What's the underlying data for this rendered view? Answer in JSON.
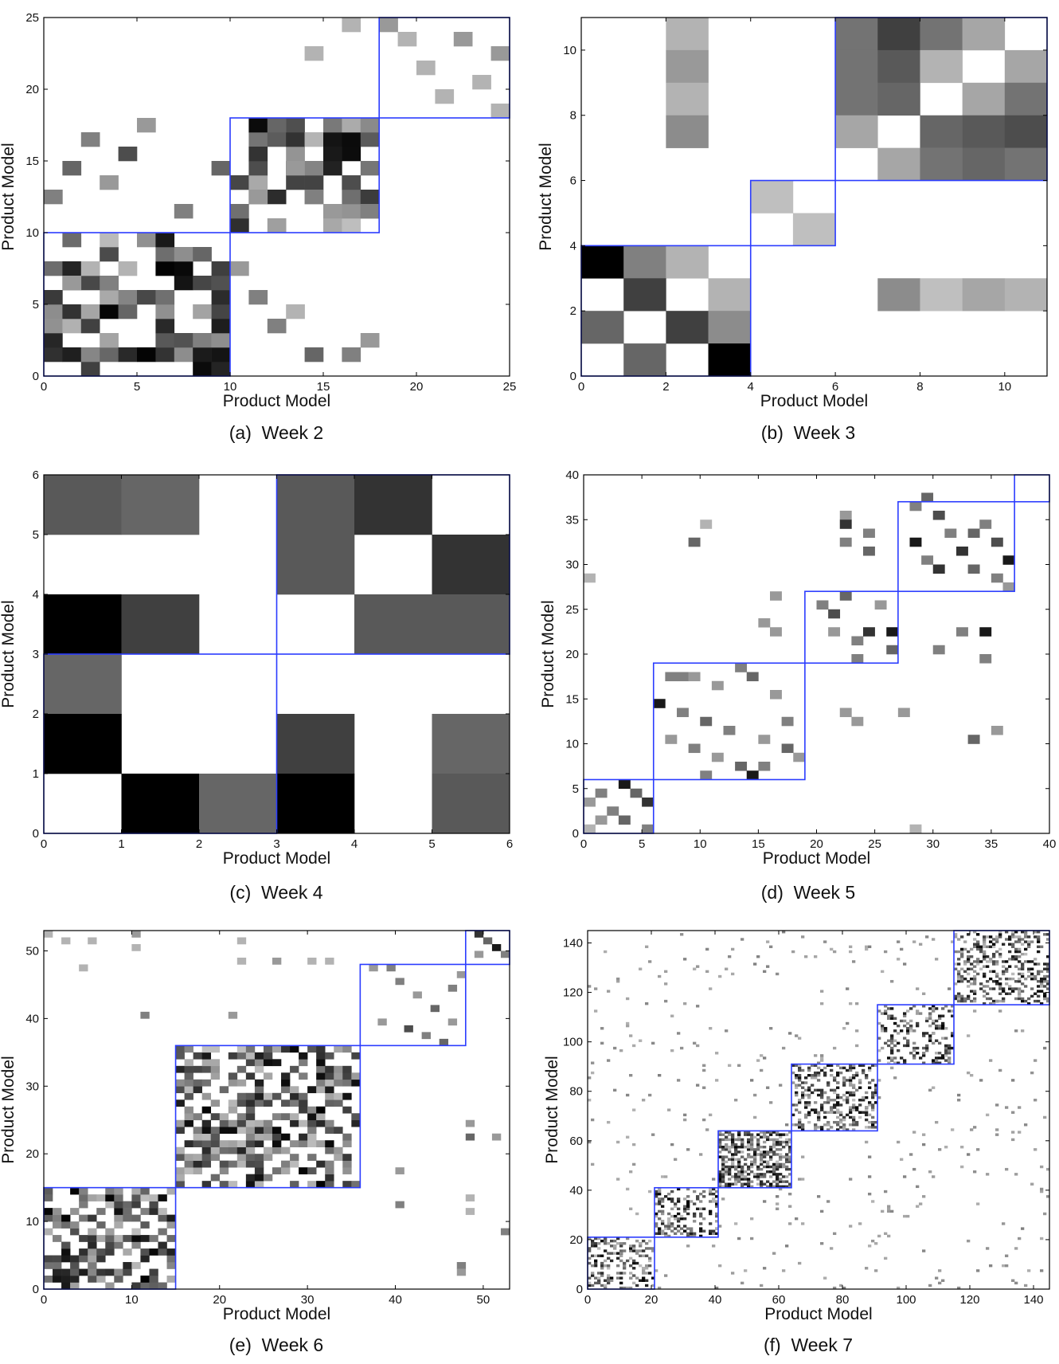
{
  "chart_data": [
    {
      "type": "heatmap",
      "caption": "(a)  Week 2",
      "xlabel": "Product Model",
      "ylabel": "Product Model",
      "xlim": [
        0,
        25
      ],
      "ylim": [
        0,
        25
      ],
      "xticks": [
        0,
        5,
        10,
        15,
        20,
        25
      ],
      "yticks": [
        0,
        5,
        10,
        15,
        20,
        25
      ],
      "block_boundaries": [
        0,
        10,
        18,
        25
      ],
      "cells": [
        [
          1,
          6,
          0.4
        ],
        [
          3,
          6,
          0.5
        ],
        [
          6,
          9,
          0.9
        ],
        [
          8,
          8,
          0.6
        ],
        [
          10,
          7,
          0.4
        ],
        [
          11,
          5,
          0.5
        ],
        [
          12,
          3,
          0.5
        ],
        [
          13,
          4,
          0.3
        ],
        [
          14,
          1,
          0.6
        ],
        [
          16,
          1,
          0.5
        ],
        [
          17,
          2,
          0.4
        ],
        [
          0,
          12,
          0.5
        ],
        [
          1,
          14,
          0.6
        ],
        [
          2,
          16,
          0.5
        ],
        [
          3,
          13,
          0.4
        ],
        [
          4,
          15,
          0.7
        ],
        [
          5,
          17,
          0.4
        ],
        [
          7,
          11,
          0.5
        ],
        [
          9,
          14,
          0.6
        ],
        [
          11,
          15,
          0.8
        ],
        [
          12,
          17,
          0.6
        ],
        [
          13,
          14,
          0.4
        ],
        [
          14,
          12,
          0.5
        ],
        [
          15,
          15,
          0.9
        ],
        [
          16,
          13,
          0.7
        ],
        [
          17,
          11,
          0.5
        ],
        [
          15,
          11,
          0.4
        ],
        [
          11,
          12,
          0.4
        ],
        [
          19,
          23,
          0.3
        ],
        [
          20,
          21,
          0.3
        ],
        [
          21,
          19,
          0.3
        ],
        [
          22,
          23,
          0.4
        ],
        [
          23,
          20,
          0.3
        ],
        [
          24,
          18,
          0.3
        ],
        [
          24,
          22,
          0.4
        ],
        [
          18,
          24,
          0.4
        ],
        [
          16,
          24,
          0.3
        ],
        [
          14,
          22,
          0.3
        ]
      ],
      "dense_blocks": [
        [
          0,
          10,
          0.55
        ],
        [
          10,
          18,
          0.7
        ]
      ]
    },
    {
      "type": "heatmap",
      "caption": "(b)  Week 3",
      "xlabel": "Product Model",
      "ylabel": "Product Model",
      "xlim": [
        0,
        11
      ],
      "ylim": [
        0,
        11
      ],
      "xticks": [
        0,
        2,
        4,
        6,
        8,
        10
      ],
      "yticks": [
        0,
        2,
        4,
        6,
        8,
        10
      ],
      "block_boundaries": [
        0,
        4,
        6,
        11
      ],
      "cells": [
        [
          0,
          3,
          1.0
        ],
        [
          1,
          3,
          0.5
        ],
        [
          2,
          3,
          0.3
        ],
        [
          1,
          2,
          0.75
        ],
        [
          3,
          2,
          0.3
        ],
        [
          0,
          1,
          0.6
        ],
        [
          2,
          1,
          0.75
        ],
        [
          3,
          1,
          0.45
        ],
        [
          1,
          0,
          0.6
        ],
        [
          3,
          0,
          1.0
        ],
        [
          4,
          5,
          0.25
        ],
        [
          5,
          4,
          0.25
        ],
        [
          6,
          10,
          0.55
        ],
        [
          7,
          10,
          0.75
        ],
        [
          8,
          10,
          0.55
        ],
        [
          9,
          10,
          0.35
        ],
        [
          6,
          9,
          0.55
        ],
        [
          7,
          9,
          0.65
        ],
        [
          8,
          9,
          0.3
        ],
        [
          10,
          9,
          0.35
        ],
        [
          6,
          8,
          0.55
        ],
        [
          7,
          8,
          0.6
        ],
        [
          9,
          8,
          0.35
        ],
        [
          10,
          8,
          0.55
        ],
        [
          6,
          7,
          0.35
        ],
        [
          8,
          7,
          0.6
        ],
        [
          9,
          7,
          0.65
        ],
        [
          10,
          7,
          0.7
        ],
        [
          7,
          6,
          0.35
        ],
        [
          8,
          6,
          0.55
        ],
        [
          9,
          6,
          0.6
        ],
        [
          10,
          6,
          0.55
        ],
        [
          2,
          10,
          0.3
        ],
        [
          2,
          9,
          0.4
        ],
        [
          2,
          8,
          0.3
        ],
        [
          2,
          7,
          0.45
        ],
        [
          7,
          2,
          0.45
        ],
        [
          8,
          2,
          0.25
        ],
        [
          9,
          2,
          0.35
        ],
        [
          10,
          2,
          0.3
        ]
      ]
    },
    {
      "type": "heatmap",
      "caption": "(c)  Week 4",
      "xlabel": "Product Model",
      "ylabel": "Product Model",
      "xlim": [
        0,
        6
      ],
      "ylim": [
        0,
        6
      ],
      "xticks": [
        0,
        1,
        2,
        3,
        4,
        5,
        6
      ],
      "yticks": [
        0,
        1,
        2,
        3,
        4,
        5,
        6
      ],
      "block_boundaries": [
        0,
        3,
        6
      ],
      "cells": [
        [
          0,
          5,
          0.65
        ],
        [
          1,
          5,
          0.6
        ],
        [
          3,
          5,
          0.65
        ],
        [
          4,
          5,
          0.8
        ],
        [
          3,
          4,
          0.65
        ],
        [
          5,
          4,
          0.8
        ],
        [
          0,
          3,
          1.0
        ],
        [
          1,
          3,
          0.75
        ],
        [
          4,
          3,
          0.65
        ],
        [
          5,
          3,
          0.65
        ],
        [
          0,
          2,
          0.6
        ],
        [
          0,
          1,
          1.0
        ],
        [
          3,
          1,
          0.75
        ],
        [
          5,
          1,
          0.6
        ],
        [
          1,
          0,
          1.0
        ],
        [
          2,
          0,
          0.6
        ],
        [
          3,
          0,
          1.0
        ],
        [
          5,
          0,
          0.65
        ]
      ]
    },
    {
      "type": "heatmap",
      "caption": "(d)  Week 5",
      "xlabel": "Product Model",
      "ylabel": "Product Model",
      "xlim": [
        0,
        40
      ],
      "ylim": [
        0,
        40
      ],
      "xticks": [
        0,
        5,
        10,
        15,
        20,
        25,
        30,
        35,
        40
      ],
      "yticks": [
        0,
        5,
        10,
        15,
        20,
        25,
        30,
        35,
        40
      ],
      "block_boundaries": [
        0,
        6,
        19,
        27,
        37,
        40
      ],
      "cells": [
        [
          3,
          5,
          0.9
        ],
        [
          1,
          4,
          0.5
        ],
        [
          4,
          4,
          0.6
        ],
        [
          5,
          3,
          0.8
        ],
        [
          0,
          3,
          0.4
        ],
        [
          2,
          2,
          0.5
        ],
        [
          3,
          1,
          0.6
        ],
        [
          1,
          1,
          0.4
        ],
        [
          5,
          0,
          0.5
        ],
        [
          0,
          0,
          0.3
        ],
        [
          7,
          17,
          0.5
        ],
        [
          8,
          17,
          0.5
        ],
        [
          9,
          17,
          0.4
        ],
        [
          11,
          16,
          0.4
        ],
        [
          13,
          18,
          0.5
        ],
        [
          14,
          17,
          0.6
        ],
        [
          16,
          15,
          0.4
        ],
        [
          6,
          14,
          0.9
        ],
        [
          8,
          13,
          0.5
        ],
        [
          10,
          12,
          0.6
        ],
        [
          12,
          11,
          0.5
        ],
        [
          7,
          10,
          0.4
        ],
        [
          9,
          9,
          0.5
        ],
        [
          11,
          8,
          0.4
        ],
        [
          13,
          7,
          0.6
        ],
        [
          15,
          7,
          0.5
        ],
        [
          17,
          9,
          0.6
        ],
        [
          18,
          8,
          0.4
        ],
        [
          17,
          12,
          0.5
        ],
        [
          15,
          10,
          0.4
        ],
        [
          10,
          6,
          0.5
        ],
        [
          14,
          6,
          0.9
        ],
        [
          20,
          25,
          0.5
        ],
        [
          21,
          24,
          0.7
        ],
        [
          22,
          26,
          0.6
        ],
        [
          23,
          21,
          0.5
        ],
        [
          24,
          22,
          0.8
        ],
        [
          25,
          25,
          0.4
        ],
        [
          26,
          22,
          0.9
        ],
        [
          26,
          20,
          0.6
        ],
        [
          21,
          22,
          0.4
        ],
        [
          23,
          19,
          0.5
        ],
        [
          28,
          36,
          0.5
        ],
        [
          29,
          37,
          0.6
        ],
        [
          30,
          35,
          0.7
        ],
        [
          31,
          33,
          0.5
        ],
        [
          32,
          31,
          0.8
        ],
        [
          33,
          29,
          0.6
        ],
        [
          34,
          34,
          0.5
        ],
        [
          35,
          32,
          0.7
        ],
        [
          36,
          30,
          0.9
        ],
        [
          28,
          32,
          0.9
        ],
        [
          30,
          29,
          0.8
        ],
        [
          33,
          33,
          0.6
        ],
        [
          35,
          28,
          0.5
        ],
        [
          36,
          27,
          0.4
        ],
        [
          29,
          30,
          0.5
        ],
        [
          22,
          35,
          0.4
        ],
        [
          22,
          34,
          0.8
        ],
        [
          24,
          33,
          0.5
        ],
        [
          22,
          32,
          0.5
        ],
        [
          24,
          31,
          0.6
        ],
        [
          0,
          28,
          0.3
        ],
        [
          16,
          26,
          0.4
        ],
        [
          10,
          34,
          0.3
        ],
        [
          9,
          32,
          0.6
        ],
        [
          15,
          23,
          0.4
        ],
        [
          16,
          22,
          0.4
        ],
        [
          32,
          22,
          0.5
        ],
        [
          34,
          22,
          0.9
        ],
        [
          30,
          20,
          0.5
        ],
        [
          34,
          19,
          0.5
        ],
        [
          22,
          13,
          0.4
        ],
        [
          23,
          12,
          0.4
        ],
        [
          27,
          13,
          0.4
        ],
        [
          35,
          11,
          0.4
        ],
        [
          33,
          10,
          0.6
        ],
        [
          28,
          0,
          0.3
        ]
      ]
    },
    {
      "type": "heatmap",
      "caption": "(e)  Week 6",
      "xlabel": "Product Model",
      "ylabel": "Product Model",
      "xlim": [
        0,
        53
      ],
      "ylim": [
        0,
        53
      ],
      "xticks": [
        0,
        10,
        20,
        30,
        40,
        50
      ],
      "yticks": [
        0,
        10,
        20,
        30,
        40,
        50
      ],
      "block_boundaries": [
        0,
        15,
        36,
        48,
        53
      ],
      "cells": [
        [
          40,
          45,
          0.5
        ],
        [
          42,
          43,
          0.4
        ],
        [
          44,
          41,
          0.6
        ],
        [
          46,
          44,
          0.5
        ],
        [
          38,
          39,
          0.4
        ],
        [
          41,
          38,
          0.7
        ],
        [
          43,
          37,
          0.5
        ],
        [
          46,
          39,
          0.4
        ],
        [
          45,
          36,
          0.6
        ],
        [
          37,
          47,
          0.4
        ],
        [
          39,
          47,
          0.5
        ],
        [
          47,
          46,
          0.4
        ],
        [
          49,
          52,
          0.8
        ],
        [
          50,
          51,
          0.6
        ],
        [
          51,
          50,
          0.9
        ],
        [
          52,
          49,
          0.5
        ],
        [
          49,
          49,
          0.4
        ],
        [
          0,
          52,
          0.3
        ],
        [
          2,
          51,
          0.3
        ],
        [
          5,
          51,
          0.3
        ],
        [
          10,
          52,
          0.4
        ],
        [
          10,
          50,
          0.3
        ],
        [
          22,
          51,
          0.3
        ],
        [
          22,
          48,
          0.3
        ],
        [
          26,
          48,
          0.4
        ],
        [
          30,
          48,
          0.3
        ],
        [
          32,
          48,
          0.3
        ],
        [
          4,
          47,
          0.3
        ],
        [
          11,
          40,
          0.5
        ],
        [
          21,
          40,
          0.4
        ],
        [
          40,
          17,
          0.4
        ],
        [
          40,
          12,
          0.5
        ],
        [
          48,
          24,
          0.4
        ],
        [
          48,
          22,
          0.6
        ],
        [
          51,
          22,
          0.4
        ],
        [
          48,
          13,
          0.3
        ],
        [
          48,
          11,
          0.3
        ],
        [
          52,
          8,
          0.5
        ],
        [
          47,
          3,
          0.5
        ],
        [
          47,
          2,
          0.4
        ]
      ],
      "dense_blocks": [
        [
          0,
          15,
          0.55
        ],
        [
          15,
          36,
          0.55
        ]
      ]
    },
    {
      "type": "heatmap",
      "caption": "(f)  Week 7",
      "xlabel": "Product Model",
      "ylabel": "Product Model",
      "xlim": [
        0,
        145
      ],
      "ylim": [
        0,
        145
      ],
      "xticks": [
        0,
        20,
        40,
        60,
        80,
        100,
        120,
        140
      ],
      "yticks": [
        0,
        20,
        40,
        60,
        80,
        100,
        120,
        140
      ],
      "block_boundaries": [
        0,
        21,
        41,
        64,
        91,
        115,
        145
      ],
      "dense_blocks": [
        [
          0,
          21,
          0.3
        ],
        [
          21,
          41,
          0.35
        ],
        [
          41,
          64,
          0.55
        ],
        [
          64,
          91,
          0.35
        ],
        [
          91,
          115,
          0.3
        ],
        [
          115,
          145,
          0.35
        ]
      ],
      "sparse_noise_density": 0.02
    }
  ]
}
